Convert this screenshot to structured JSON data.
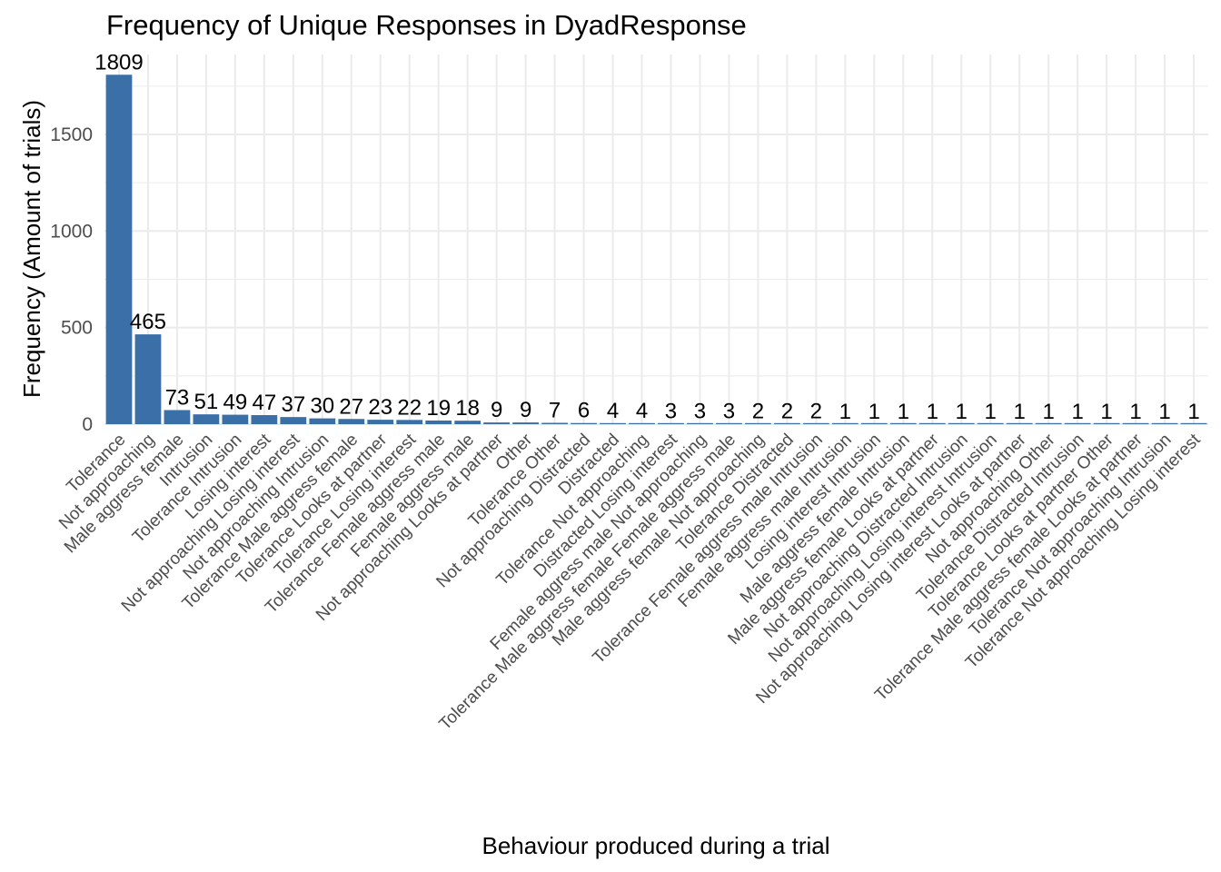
{
  "chart_data": {
    "type": "bar",
    "title": "Frequency of Unique Responses in DyadResponse",
    "xlabel": "Behaviour produced during a trial",
    "ylabel": "Frequency (Amount of trials)",
    "ylim": [
      0,
      1880
    ],
    "yticks": [
      0,
      500,
      1000,
      1500
    ],
    "grid": true,
    "bar_color": "#3a6fa8",
    "categories": [
      "Tolerance",
      "Not approaching",
      "Male aggress female",
      "Intrusion",
      "Tolerance Intrusion",
      "Losing interest",
      "Not approaching Losing interest",
      "Not approaching Intrusion",
      "Tolerance Male aggress female",
      "Tolerance Looks at partner",
      "Tolerance Losing interest",
      "Tolerance Female aggress male",
      "Female aggress male",
      "Not approaching Looks at partner",
      "Other",
      "Tolerance Other",
      "Not approaching Distracted",
      "Distracted",
      "Tolerance Not approaching",
      "Distracted Losing interest",
      "Female aggress male Not approaching",
      "Tolerance Male aggress female Female aggress male",
      "Male aggress female Not approaching",
      "Tolerance Distracted",
      "Tolerance Female aggress male Intrusion",
      "Female aggress male Intrusion",
      "Losing interest Intrusion",
      "Male aggress female Intrusion",
      "Male aggress female Looks at partner",
      "Not approaching Distracted Intrusion",
      "Not approaching Losing interest Intrusion",
      "Not approaching Losing interest Looks at partner",
      "Not approaching Other",
      "Tolerance Distracted Intrusion",
      "Tolerance Looks at partner Other",
      "Tolerance Male aggress female Looks at partner",
      "Tolerance Not approaching Intrusion",
      "Tolerance Not approaching Losing interest"
    ],
    "values": [
      1809,
      465,
      73,
      51,
      49,
      47,
      37,
      30,
      27,
      23,
      22,
      19,
      18,
      9,
      9,
      7,
      6,
      4,
      4,
      3,
      3,
      3,
      2,
      2,
      2,
      1,
      1,
      1,
      1,
      1,
      1,
      1,
      1,
      1,
      1,
      1,
      1,
      1
    ],
    "data_labels": [
      "1809",
      "465",
      "73",
      "51",
      "49",
      "47",
      "37",
      "30",
      "27",
      "23",
      "22",
      "19",
      "18",
      "9",
      "9",
      "7",
      "6",
      "4",
      "4",
      "3",
      "3",
      "3",
      "2",
      "2",
      "2",
      "1",
      "1",
      "1",
      "1",
      "1",
      "1",
      "1",
      "1",
      "1",
      "1",
      "1",
      "1",
      "1"
    ]
  }
}
